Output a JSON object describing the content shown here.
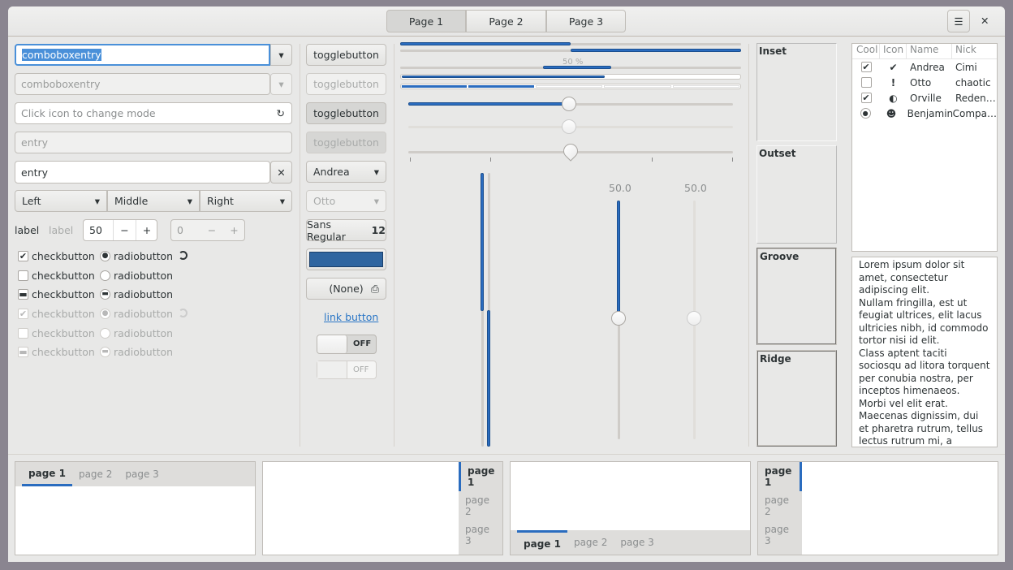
{
  "header": {
    "tabs": [
      "Page 1",
      "Page 2",
      "Page 3"
    ],
    "menu_icon": "hamburger-icon",
    "close_icon": "close-icon"
  },
  "left": {
    "combo1": "comboboxentry",
    "combo2": "comboboxentry",
    "mode_entry_placeholder": "Click icon to change mode",
    "entry_disabled": "entry",
    "entry": "entry",
    "linked": [
      "Left",
      "Middle",
      "Right"
    ],
    "label1": "label",
    "label2": "label",
    "spin1": "50",
    "spin2": "0",
    "check_label": "checkbutton",
    "radio_label": "radiobutton"
  },
  "buttons": {
    "toggle": "togglebutton",
    "combo1": "Andrea",
    "combo2": "Otto",
    "font_name": "Sans Regular",
    "font_size": "12",
    "color": "#2f65a0",
    "file": "(None)",
    "link": "link button",
    "switch_off": "OFF"
  },
  "progress": {
    "label": "50 %",
    "value": 0.5,
    "scale_value": 50,
    "vscale_labels": [
      "50.0",
      "50.0"
    ]
  },
  "frames": [
    "Inset",
    "Outset",
    "Groove",
    "Ridge"
  ],
  "tree": {
    "columns": [
      "Cool",
      "Icon",
      "Name",
      "Nick"
    ],
    "rows": [
      {
        "cool": "checked",
        "icon": "✔",
        "name": "Andrea",
        "nick": "Cimi"
      },
      {
        "cool": "unchecked",
        "icon": "!",
        "name": "Otto",
        "nick": "chaotic"
      },
      {
        "cool": "checked",
        "icon": "◐",
        "name": "Orville",
        "nick": "Reden…"
      },
      {
        "cool": "radio",
        "icon": "☻",
        "name": "Benjamin",
        "nick": "Compa…"
      }
    ]
  },
  "textview": [
    "Lorem ipsum dolor sit amet, consectetur adipiscing elit.",
    "Nullam fringilla, est ut feugiat ultrices, elit lacus ultricies nibh, id commodo tortor nisi id elit.",
    "Class aptent taciti sociosqu ad litora torquent per conubia nostra, per inceptos himenaeos.",
    "Morbi vel elit erat. Maecenas dignissim, dui et pharetra rutrum, tellus lectus rutrum mi, a convallis libero nisi quis tellus."
  ],
  "notebooks": {
    "tabs": [
      "page 1",
      "page 2",
      "page 3"
    ]
  },
  "colors": {
    "accent": "#2a6cbf",
    "window": "#e8e8e7"
  }
}
